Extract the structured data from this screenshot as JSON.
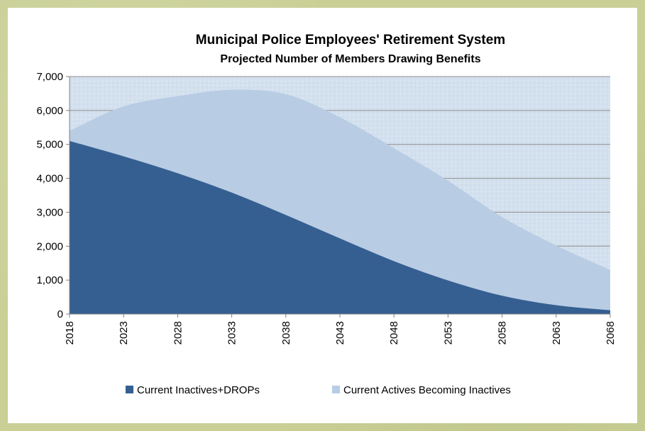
{
  "chart_data": {
    "type": "area",
    "stacked": true,
    "title": "Municipal Police Employees' Retirement System",
    "subtitle": "Projected Number of Members Drawing Benefits",
    "xlabel": "",
    "ylabel": "",
    "x": [
      2018,
      2023,
      2028,
      2033,
      2038,
      2043,
      2048,
      2053,
      2058,
      2063,
      2068
    ],
    "x_tick_labels": [
      "2018",
      "2023",
      "2028",
      "2033",
      "2038",
      "2043",
      "2048",
      "2053",
      "2058",
      "2063",
      "2068"
    ],
    "y_tick_labels": [
      "0",
      "1,000",
      "2,000",
      "3,000",
      "4,000",
      "5,000",
      "6,000",
      "7,000"
    ],
    "ylim": [
      0,
      7000
    ],
    "xlim": [
      2018,
      2068
    ],
    "grid": "horizontal",
    "legend_position": "bottom",
    "series": [
      {
        "name": "Current Inactives+DROPs",
        "color": "#355f91",
        "values": [
          5100,
          4650,
          4150,
          3580,
          2920,
          2230,
          1560,
          990,
          540,
          260,
          110
        ]
      },
      {
        "name": "Current Actives Becoming Inactives",
        "color": "#b8cce4",
        "values": [
          300,
          1470,
          2270,
          3030,
          3560,
          3570,
          3330,
          2940,
          2320,
          1760,
          1190
        ]
      }
    ],
    "plot_background": "#d6e3f0",
    "grid_color": "#8c8c8c"
  }
}
